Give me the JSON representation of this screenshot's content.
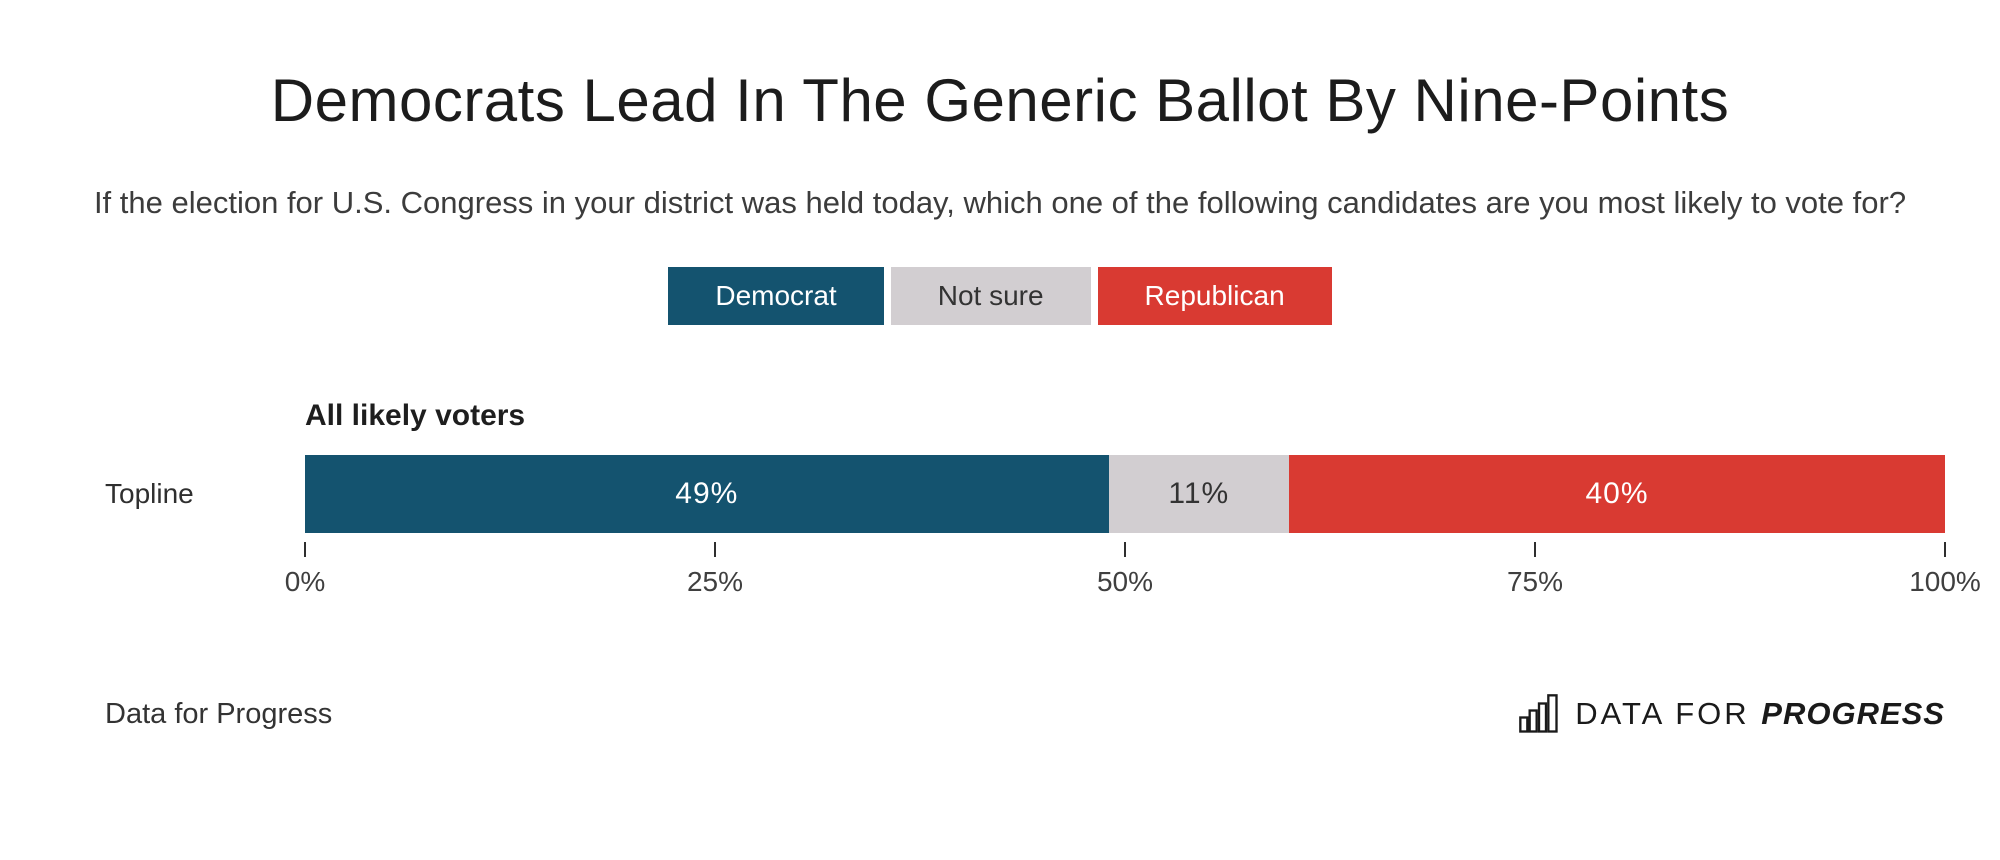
{
  "title": "Democrats Lead In The Generic Ballot By Nine-Points",
  "subtitle": "If the election for U.S. Congress in your district was held today, which one of the following candidates are you most likely to vote for?",
  "colors": {
    "democrat_blue": "#14536f",
    "not_sure_gray": "#d2ced1",
    "republican_red": "#d93a32",
    "light_text": "#ffffff",
    "dark_text": "#333333"
  },
  "chart_data": {
    "type": "bar",
    "orientation": "horizontal-stacked",
    "group_label": "All likely voters",
    "categories": [
      "Topline"
    ],
    "series": [
      {
        "name": "Democrat",
        "values": [
          49
        ],
        "color": "#14536f",
        "text_color": "#ffffff"
      },
      {
        "name": "Not sure",
        "values": [
          11
        ],
        "color": "#d2ced1",
        "text_color": "#333333"
      },
      {
        "name": "Republican",
        "values": [
          40
        ],
        "color": "#d93a32",
        "text_color": "#ffffff"
      }
    ],
    "value_suffix": "%",
    "x_ticks": [
      "0%",
      "25%",
      "50%",
      "75%",
      "100%"
    ],
    "xlim": [
      0,
      100
    ],
    "legend_position": "top-center",
    "grid": false
  },
  "footer": {
    "credit": "Data for Progress",
    "logo": {
      "icon": "bar-chart-icon",
      "regular": "DATA FOR",
      "bold": "PROGRESS"
    }
  }
}
